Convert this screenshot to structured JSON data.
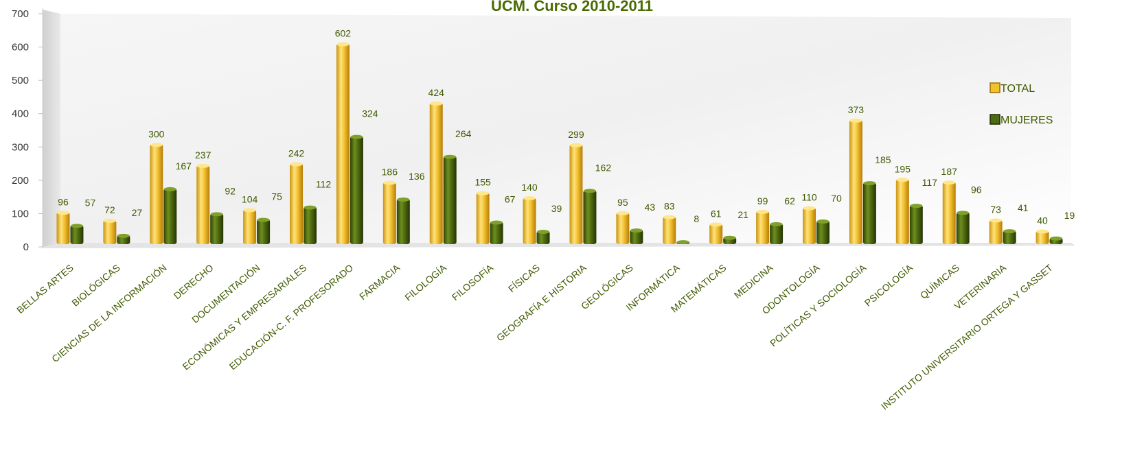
{
  "chart_data": {
    "type": "bar",
    "title": "UCM. Curso 2010-2011",
    "categories": [
      "BELLAS ARTES",
      "BIOLÓGICAS",
      "CIENCIAS DE LA INFORMACIÓN",
      "DERECHO",
      "DOCUMENTACIÓN",
      "ECONÓMICAS Y EMPRESARIALES",
      "EDUCACIÓN-C. F. PROFESORADO",
      "FARMACIA",
      "FILOLOGÍA",
      "FILOSOFÍA",
      "FÍSICAS",
      "GEOGRAFÍA E HISTORIA",
      "GEOLÓGICAS",
      "INFORMÁTICA",
      "MATEMÁTICAS",
      "MEDICINA",
      "ODONTOLOGÍA",
      "POLÍTICAS Y SOCIOLOGÍA",
      "PSICOLOGÍA",
      "QUÍMICAS",
      "VETERINARIA",
      "INSTITUTO UNIVERSITARIO ORTEGA Y GASSET"
    ],
    "series": [
      {
        "name": "TOTAL",
        "color": "#f2c12e",
        "values": [
          96,
          72,
          300,
          237,
          104,
          242,
          602,
          186,
          424,
          155,
          140,
          299,
          95,
          83,
          61,
          99,
          110,
          373,
          195,
          187,
          73,
          40
        ]
      },
      {
        "name": "MUJERES",
        "color": "#4f6b12",
        "values": [
          57,
          27,
          167,
          92,
          75,
          112,
          324,
          136,
          264,
          67,
          39,
          162,
          43,
          8,
          21,
          62,
          70,
          185,
          117,
          96,
          41,
          19
        ]
      }
    ],
    "ylim": [
      0,
      700
    ],
    "yticks": [
      0,
      100,
      200,
      300,
      400,
      500,
      600,
      700
    ],
    "xlabel": "",
    "ylabel": "",
    "grid": false,
    "legend": "right",
    "label_color": "#3f5a00"
  }
}
